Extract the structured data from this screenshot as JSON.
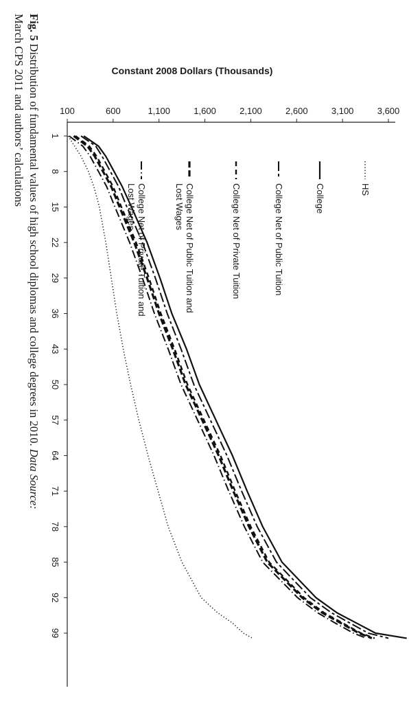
{
  "figure": {
    "number": "Fig. 5",
    "caption": "Distribution of fundamental values of high school diplomas and college degrees in 2010.",
    "source_label": "Data Source:",
    "source_text": "March CPS 2011 and authors’ calculations"
  },
  "chart_data": {
    "type": "line",
    "title": "",
    "ylabel": "Constant 2008 Dollars (Thousands)",
    "xlabel": "",
    "x_ticks": [
      1,
      8,
      15,
      22,
      29,
      36,
      43,
      50,
      57,
      64,
      71,
      78,
      85,
      92,
      99
    ],
    "y_ticks": [
      100,
      600,
      1100,
      1600,
      2100,
      2600,
      3100,
      3600
    ],
    "y_tick_labels": [
      "100",
      "600",
      "1,100",
      "1,600",
      "2,100",
      "2,600",
      "3,100",
      "3,600"
    ],
    "xlim": [
      1,
      100
    ],
    "ylim": [
      100,
      3800
    ],
    "grid": false,
    "legend_position": "top-left",
    "x": [
      1,
      3,
      5,
      8,
      11,
      15,
      22,
      29,
      36,
      43,
      50,
      57,
      64,
      71,
      78,
      85,
      92,
      95,
      97,
      99,
      100
    ],
    "series": [
      {
        "name": "HS",
        "style": "dotted",
        "values": [
          110,
          180,
          250,
          330,
          390,
          450,
          520,
          580,
          640,
          710,
          790,
          880,
          980,
          1090,
          1200,
          1350,
          1560,
          1740,
          1900,
          2020,
          2120
        ]
      },
      {
        "name": "College",
        "style": "solid",
        "values": [
          280,
          440,
          520,
          610,
          700,
          800,
          970,
          1110,
          1240,
          1400,
          1540,
          1720,
          1900,
          2060,
          2230,
          2440,
          2810,
          3040,
          3250,
          3460,
          3800
        ]
      },
      {
        "name": "College Net of Public Tuition",
        "style": "long-short-dash",
        "values": [
          250,
          410,
          480,
          570,
          660,
          750,
          920,
          1060,
          1190,
          1340,
          1480,
          1660,
          1840,
          2000,
          2170,
          2380,
          2750,
          2980,
          3180,
          3380,
          3600
        ]
      },
      {
        "name": "College Net of Private Tuition",
        "style": "short-dash",
        "values": [
          190,
          340,
          420,
          510,
          600,
          690,
          850,
          990,
          1120,
          1270,
          1410,
          1590,
          1770,
          1930,
          2100,
          2300,
          2680,
          2900,
          3100,
          3300,
          3450
        ]
      },
      {
        "name": "College Net of Public Tuition and Lost Wages",
        "style": "heavy-dash",
        "values": [
          170,
          320,
          400,
          490,
          580,
          670,
          830,
          970,
          1100,
          1250,
          1390,
          1570,
          1750,
          1910,
          2080,
          2280,
          2660,
          2880,
          3080,
          3280,
          3420
        ]
      },
      {
        "name": "College Net of Private Tuition and Lost Wages",
        "style": "dash-dot",
        "values": [
          120,
          270,
          350,
          440,
          530,
          620,
          780,
          920,
          1050,
          1200,
          1340,
          1520,
          1700,
          1860,
          2030,
          2230,
          2610,
          2830,
          3020,
          3220,
          3360
        ]
      }
    ]
  }
}
